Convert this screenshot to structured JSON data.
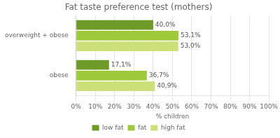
{
  "chart_data": {
    "type": "bar",
    "orientation": "horizontal",
    "title": "Fat taste preference test (mothers)",
    "categories": [
      "overweight + obese",
      "obese"
    ],
    "series": [
      {
        "name": "low fat",
        "color": "#6e9a28",
        "values": [
          40.0,
          17.1
        ],
        "value_labels": [
          "40,0%",
          "17,1%"
        ]
      },
      {
        "name": "fat",
        "color": "#9dc93a",
        "values": [
          53.1,
          36.7
        ],
        "value_labels": [
          "53,1%",
          "36,7%"
        ]
      },
      {
        "name": "high fat",
        "color": "#cce07a",
        "values": [
          53.0,
          40.9
        ],
        "value_labels": [
          "53,0%",
          "40,9%"
        ]
      }
    ],
    "xlabel": "% children",
    "xlim": [
      0,
      100
    ],
    "xticks": [
      {
        "value": 0,
        "label": "0%"
      },
      {
        "value": 10,
        "label": "10%"
      },
      {
        "value": 20,
        "label": "20%"
      },
      {
        "value": 30,
        "label": "30%"
      },
      {
        "value": 40,
        "label": "40%"
      },
      {
        "value": 50,
        "label": "50%"
      },
      {
        "value": 60,
        "label": "60%"
      },
      {
        "value": 70,
        "label": "70%"
      },
      {
        "value": 80,
        "label": "80%"
      },
      {
        "value": 90,
        "label": "90%"
      },
      {
        "value": 100,
        "label": "100%"
      }
    ],
    "grid": true,
    "data_labels": true,
    "legend": "bottom"
  }
}
